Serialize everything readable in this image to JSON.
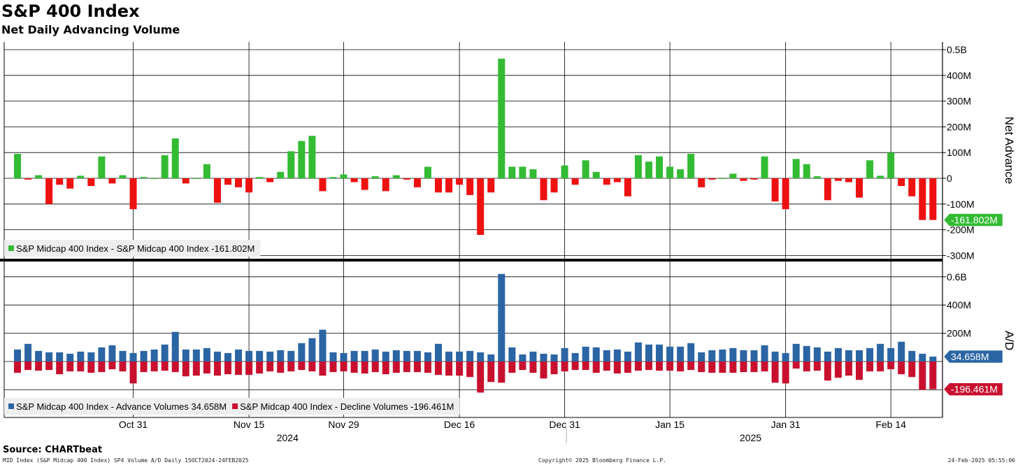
{
  "header": {
    "title": "S&P 400 Index",
    "subtitle": "Net Daily Advancing Volume"
  },
  "footer": {
    "source": "Source: CHARTbeat",
    "left_note": "MID Index (S&P Midcap 400 Index) SP4 Volume A/D  Daily 15OCT2024-24FEB2025",
    "center_note": "Copyright© 2025 Bloomberg Finance L.P.",
    "right_note": "24-Feb-2025 05:55:06"
  },
  "colors": {
    "positive": "#33bb33",
    "negative": "#ee1111",
    "advance": "#2b65a4",
    "decline": "#c8102e",
    "grid": "#000000"
  },
  "chart_data": [
    {
      "type": "bar",
      "panel": "top",
      "ylabel": "Net Advance",
      "ylim": [
        -300,
        500
      ],
      "y_ticks": [
        {
          "value": 500,
          "label": "0.5B"
        },
        {
          "value": 400,
          "label": "400M"
        },
        {
          "value": 300,
          "label": "300M"
        },
        {
          "value": 200,
          "label": "200M"
        },
        {
          "value": 100,
          "label": "100M"
        },
        {
          "value": 0,
          "label": "0"
        },
        {
          "value": -100,
          "label": "-100M"
        },
        {
          "value": -200,
          "label": "-200M"
        },
        {
          "value": -300,
          "label": "-300M"
        }
      ],
      "legend": [
        {
          "label": "S&P Midcap 400 Index - S&P Midcap 400 Index -161.802M",
          "color": "#33bb33"
        }
      ],
      "last_value_tag": {
        "value": -161.802,
        "label": "-161.802M",
        "color": "#33bb33"
      },
      "series": [
        {
          "name": "S&P Midcap 400 Index - S&P Midcap 400 Index",
          "unit": "M",
          "values": [
            95,
            -5,
            12,
            -100,
            -25,
            -40,
            10,
            -30,
            85,
            -20,
            12,
            -120,
            5,
            0,
            90,
            155,
            -20,
            0,
            55,
            -95,
            -25,
            -35,
            -55,
            5,
            -15,
            25,
            105,
            145,
            165,
            -50,
            5,
            15,
            -15,
            -45,
            8,
            -50,
            12,
            -5,
            -35,
            45,
            -55,
            -55,
            -25,
            -65,
            -220,
            -55,
            465,
            45,
            45,
            35,
            -85,
            -55,
            50,
            -25,
            70,
            25,
            -25,
            -15,
            -70,
            90,
            65,
            85,
            45,
            35,
            95,
            -35,
            -5,
            0,
            18,
            -10,
            -5,
            85,
            -90,
            -120,
            75,
            55,
            8,
            -85,
            -10,
            -15,
            -75,
            70,
            10,
            100,
            -30,
            -70,
            -162,
            -162
          ]
        }
      ]
    },
    {
      "type": "bar",
      "panel": "bottom",
      "ylabel": "A/D",
      "ylim": [
        -300,
        600
      ],
      "y_ticks": [
        {
          "value": 600,
          "label": "0.6B"
        },
        {
          "value": 400,
          "label": "400M"
        },
        {
          "value": 200,
          "label": "200M"
        }
      ],
      "legend": [
        {
          "label": "S&P Midcap 400 Index - Advance Volumes 34.658M",
          "color": "#2b65a4"
        },
        {
          "label": "S&P Midcap 400 Index - Decline Volumes -196.461M",
          "color": "#c8102e"
        }
      ],
      "last_value_tags": [
        {
          "value": 34.658,
          "label": "34.658M",
          "color": "#2b65a4"
        },
        {
          "value": -196.461,
          "label": "-196.461M",
          "color": "#c8102e"
        }
      ],
      "series": [
        {
          "name": "S&P Midcap 400 Index - Advance Volumes",
          "unit": "M",
          "values": [
            85,
            125,
            75,
            65,
            65,
            55,
            70,
            65,
            100,
            115,
            75,
            60,
            75,
            85,
            120,
            210,
            85,
            85,
            95,
            70,
            60,
            85,
            75,
            75,
            70,
            80,
            75,
            130,
            165,
            225,
            65,
            60,
            75,
            75,
            85,
            70,
            80,
            75,
            75,
            65,
            125,
            70,
            70,
            75,
            65,
            50,
            620,
            100,
            50,
            70,
            55,
            50,
            95,
            60,
            105,
            100,
            80,
            85,
            70,
            135,
            120,
            120,
            105,
            105,
            130,
            65,
            80,
            85,
            95,
            80,
            80,
            115,
            70,
            60,
            125,
            110,
            100,
            70,
            95,
            80,
            80,
            95,
            125,
            95,
            140,
            75,
            55,
            35
          ]
        },
        {
          "name": "S&P Midcap 400 Index - Decline Volumes",
          "unit": "M",
          "values": [
            -80,
            -60,
            -65,
            -60,
            -90,
            -70,
            -70,
            -80,
            -75,
            -55,
            -70,
            -155,
            -75,
            -70,
            -65,
            -75,
            -105,
            -100,
            -85,
            -100,
            -90,
            -95,
            -95,
            -85,
            -70,
            -80,
            -70,
            -60,
            -70,
            -100,
            -75,
            -70,
            -80,
            -85,
            -75,
            -90,
            -80,
            -75,
            -75,
            -80,
            -95,
            -100,
            -100,
            -110,
            -220,
            -145,
            -150,
            -80,
            -60,
            -80,
            -120,
            -90,
            -70,
            -60,
            -60,
            -80,
            -65,
            -85,
            -80,
            -65,
            -60,
            -65,
            -65,
            -70,
            -60,
            -75,
            -80,
            -80,
            -80,
            -75,
            -75,
            -70,
            -150,
            -155,
            -50,
            -70,
            -65,
            -135,
            -115,
            -100,
            -130,
            -70,
            -70,
            -55,
            -90,
            -110,
            -200,
            -196
          ]
        }
      ]
    }
  ],
  "x_axis": {
    "date_range": [
      "2024-10-15",
      "2025-02-24"
    ],
    "tick_labels": [
      "Oct 31",
      "Nov 15",
      "Nov 29",
      "Dec 16",
      "Dec 31",
      "Jan 15",
      "Jan 31",
      "Feb 14"
    ],
    "tick_bar_index": [
      11,
      22,
      31,
      42,
      52,
      62,
      73,
      83
    ],
    "year_labels": [
      {
        "label": "2024",
        "bar_index": 26
      },
      {
        "label": "2025",
        "bar_index": 70
      }
    ],
    "year_divider_bar_index": 52.5
  }
}
